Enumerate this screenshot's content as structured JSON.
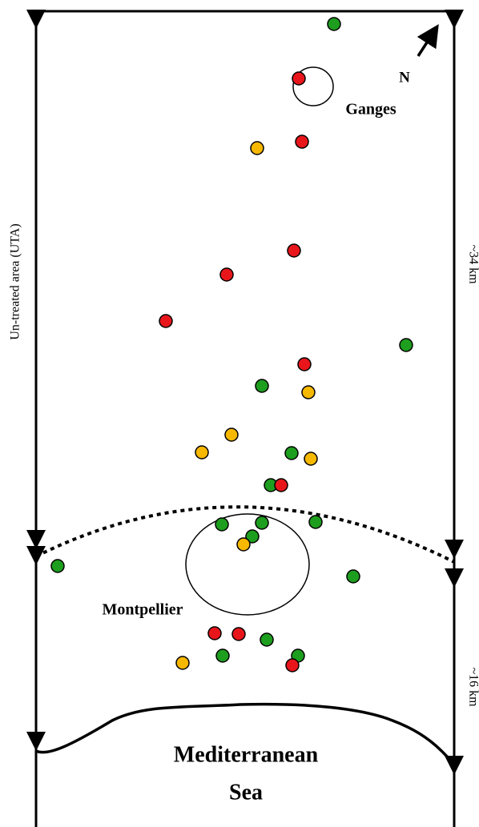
{
  "map": {
    "north": "N",
    "places": {
      "ganges": "Ganges",
      "montpellier": "Montpellier"
    },
    "sea": [
      "Mediterranean",
      "Sea"
    ],
    "untreated_area": "Un-treated area (UTA)",
    "distances": {
      "north_part": "~34 km",
      "south_part": "~16 km"
    }
  }
}
